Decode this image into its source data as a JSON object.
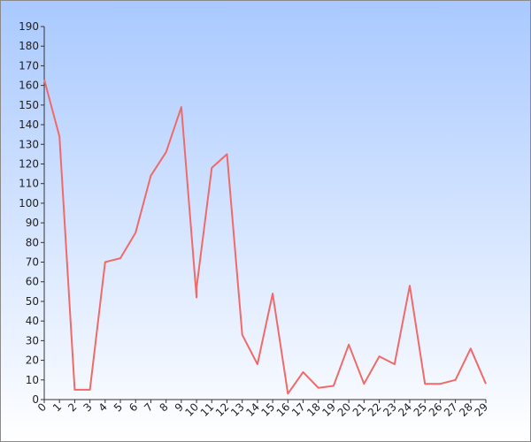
{
  "chart_data": {
    "type": "line",
    "x": [
      0,
      1,
      2,
      3,
      4,
      5,
      6,
      7,
      8,
      9,
      10,
      11,
      12,
      13,
      14,
      15,
      16,
      17,
      18,
      19,
      20,
      21,
      22,
      23,
      24,
      25,
      26,
      27,
      28,
      29
    ],
    "series": [
      {
        "values": [
          163,
          134,
          5,
          5,
          70,
          72,
          85,
          114,
          126,
          149,
          52,
          118,
          125,
          33,
          18,
          54,
          3,
          14,
          6,
          7,
          28,
          8,
          22,
          18,
          58,
          8,
          8,
          10,
          26,
          8
        ],
        "extra_points": [
          {
            "x": 10,
            "y": 57
          }
        ],
        "color": "#f06a6a"
      }
    ],
    "xlim": [
      0,
      29
    ],
    "ylim": [
      0,
      190
    ],
    "y_ticks": [
      0,
      10,
      20,
      30,
      40,
      50,
      60,
      70,
      80,
      90,
      100,
      110,
      120,
      130,
      140,
      150,
      160,
      170,
      180,
      190
    ],
    "x_ticks": [
      0,
      1,
      2,
      3,
      4,
      5,
      6,
      7,
      8,
      9,
      10,
      11,
      12,
      13,
      14,
      15,
      16,
      17,
      18,
      19,
      20,
      21,
      22,
      23,
      24,
      25,
      26,
      27,
      28,
      29
    ],
    "grid": false,
    "legend": "none",
    "background_gradient": [
      "#a9c9ff",
      "#ffffff"
    ]
  }
}
